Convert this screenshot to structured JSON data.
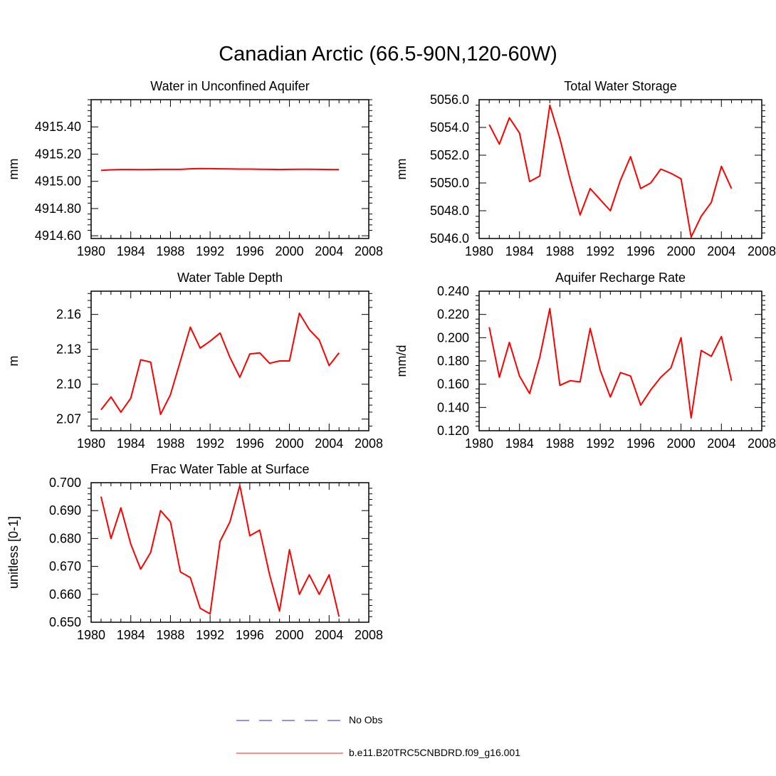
{
  "figure": {
    "title": "Canadian Arctic (66.5-90N,120-60W)"
  },
  "legend": {
    "entries": [
      {
        "label": "No Obs",
        "color": "#6b6bff",
        "style": "dashed"
      },
      {
        "label": "b.e11.B20TRC5CNBDRD.f09_g16.001",
        "color": "#ff0000",
        "style": "solid"
      }
    ]
  },
  "chart_data": [
    {
      "type": "line",
      "title": "Water in Unconfined Aquifer",
      "xlabel": "",
      "ylabel": "mm",
      "xlim": [
        1980,
        2008
      ],
      "ylim": [
        4914.58,
        4915.6
      ],
      "xticks": [
        1980,
        1984,
        1988,
        1992,
        1996,
        2000,
        2004,
        2008
      ],
      "yticks": [
        4914.6,
        4914.8,
        4915.0,
        4915.2,
        4915.4
      ],
      "ytick_labels": [
        "4914.60",
        "4914.80",
        "4915.00",
        "4915.20",
        "4915.40"
      ],
      "x": [
        1981,
        1982,
        1983,
        1984,
        1985,
        1986,
        1987,
        1988,
        1989,
        1990,
        1991,
        1992,
        1993,
        1994,
        1995,
        1996,
        1997,
        1998,
        1999,
        2000,
        2001,
        2002,
        2003,
        2004,
        2005
      ],
      "series": [
        {
          "color": "#ff0000",
          "values": [
            4915.08,
            4915.085,
            4915.087,
            4915.087,
            4915.086,
            4915.087,
            4915.088,
            4915.088,
            4915.088,
            4915.092,
            4915.094,
            4915.093,
            4915.092,
            4915.091,
            4915.09,
            4915.09,
            4915.089,
            4915.088,
            4915.087,
            4915.088,
            4915.089,
            4915.089,
            4915.088,
            4915.087,
            4915.086
          ]
        }
      ]
    },
    {
      "type": "line",
      "title": "Total Water Storage",
      "xlabel": "",
      "ylabel": "mm",
      "xlim": [
        1980,
        2008
      ],
      "ylim": [
        5046.0,
        5056.0
      ],
      "xticks": [
        1980,
        1984,
        1988,
        1992,
        1996,
        2000,
        2004,
        2008
      ],
      "yticks": [
        5046.0,
        5048.0,
        5050.0,
        5052.0,
        5054.0,
        5056.0
      ],
      "ytick_labels": [
        "5046.0",
        "5048.0",
        "5050.0",
        "5052.0",
        "5054.0",
        "5056.0"
      ],
      "x": [
        1981,
        1982,
        1983,
        1984,
        1985,
        1986,
        1987,
        1988,
        1989,
        1990,
        1991,
        1992,
        1993,
        1994,
        1995,
        1996,
        1997,
        1998,
        1999,
        2000,
        2001,
        2002,
        2003,
        2004,
        2005
      ],
      "series": [
        {
          "color": "#ff0000",
          "values": [
            5054.2,
            5052.8,
            5054.7,
            5053.6,
            5050.1,
            5050.5,
            5055.6,
            5053.2,
            5050.3,
            5047.7,
            5049.6,
            5048.8,
            5048.0,
            5050.2,
            5051.9,
            5049.6,
            5050.0,
            5051.0,
            5050.7,
            5050.3,
            5046.1,
            5047.6,
            5048.6,
            5051.2,
            5049.6
          ]
        }
      ]
    },
    {
      "type": "line",
      "title": "Water Table Depth",
      "xlabel": "",
      "ylabel": "m",
      "xlim": [
        1980,
        2008
      ],
      "ylim": [
        2.06,
        2.18
      ],
      "xticks": [
        1980,
        1984,
        1988,
        1992,
        1996,
        2000,
        2004,
        2008
      ],
      "yticks": [
        2.07,
        2.1,
        2.13,
        2.16
      ],
      "ytick_labels": [
        "2.07",
        "2.10",
        "2.13",
        "2.16"
      ],
      "x": [
        1981,
        1982,
        1983,
        1984,
        1985,
        1986,
        1987,
        1988,
        1989,
        1990,
        1991,
        1992,
        1993,
        1994,
        1995,
        1996,
        1997,
        1998,
        1999,
        2000,
        2001,
        2002,
        2003,
        2004,
        2005
      ],
      "series": [
        {
          "color": "#ff0000",
          "values": [
            2.078,
            2.089,
            2.076,
            2.088,
            2.121,
            2.119,
            2.074,
            2.091,
            2.12,
            2.149,
            2.131,
            2.137,
            2.144,
            2.123,
            2.106,
            2.126,
            2.127,
            2.118,
            2.12,
            2.12,
            2.161,
            2.147,
            2.138,
            2.116,
            2.127
          ]
        }
      ]
    },
    {
      "type": "line",
      "title": "Aquifer Recharge Rate",
      "xlabel": "",
      "ylabel": "mm/d",
      "xlim": [
        1980,
        2008
      ],
      "ylim": [
        0.12,
        0.24
      ],
      "xticks": [
        1980,
        1984,
        1988,
        1992,
        1996,
        2000,
        2004,
        2008
      ],
      "yticks": [
        0.12,
        0.14,
        0.16,
        0.18,
        0.2,
        0.22,
        0.24
      ],
      "ytick_labels": [
        "0.120",
        "0.140",
        "0.160",
        "0.180",
        "0.200",
        "0.220",
        "0.240"
      ],
      "x": [
        1981,
        1982,
        1983,
        1984,
        1985,
        1986,
        1987,
        1988,
        1989,
        1990,
        1991,
        1992,
        1993,
        1994,
        1995,
        1996,
        1997,
        1998,
        1999,
        2000,
        2001,
        2002,
        2003,
        2004,
        2005
      ],
      "series": [
        {
          "color": "#ff0000",
          "values": [
            0.209,
            0.166,
            0.196,
            0.167,
            0.152,
            0.183,
            0.225,
            0.159,
            0.163,
            0.162,
            0.208,
            0.172,
            0.149,
            0.17,
            0.167,
            0.142,
            0.155,
            0.166,
            0.174,
            0.2,
            0.131,
            0.189,
            0.184,
            0.201,
            0.163
          ]
        }
      ]
    },
    {
      "type": "line",
      "title": "Frac Water Table at Surface",
      "xlabel": "",
      "ylabel": "unitless [0-1]",
      "xlim": [
        1980,
        2008
      ],
      "ylim": [
        0.65,
        0.7
      ],
      "xticks": [
        1980,
        1984,
        1988,
        1992,
        1996,
        2000,
        2004,
        2008
      ],
      "yticks": [
        0.65,
        0.66,
        0.67,
        0.68,
        0.69,
        0.7
      ],
      "ytick_labels": [
        "0.650",
        "0.660",
        "0.670",
        "0.680",
        "0.690",
        "0.700"
      ],
      "x": [
        1981,
        1982,
        1983,
        1984,
        1985,
        1986,
        1987,
        1988,
        1989,
        1990,
        1991,
        1992,
        1993,
        1994,
        1995,
        1996,
        1997,
        1998,
        1999,
        2000,
        2001,
        2002,
        2003,
        2004,
        2005
      ],
      "series": [
        {
          "color": "#ff0000",
          "values": [
            0.695,
            0.68,
            0.691,
            0.678,
            0.669,
            0.675,
            0.69,
            0.686,
            0.668,
            0.666,
            0.655,
            0.653,
            0.679,
            0.686,
            0.699,
            0.681,
            0.683,
            0.667,
            0.654,
            0.676,
            0.66,
            0.667,
            0.66,
            0.667,
            0.652
          ]
        }
      ]
    }
  ]
}
